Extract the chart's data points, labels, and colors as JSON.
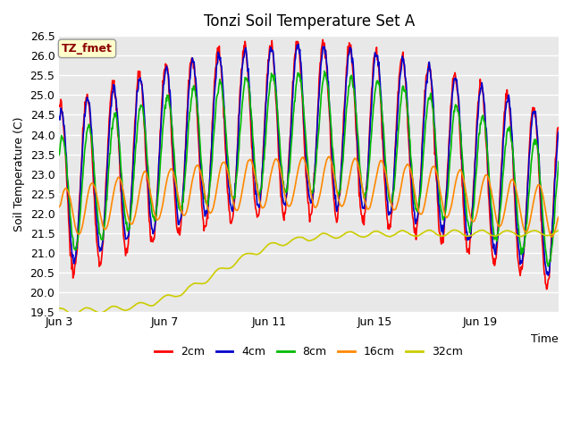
{
  "title": "Tonzi Soil Temperature Set A",
  "xlabel": "Time",
  "ylabel": "Soil Temperature (C)",
  "ylim": [
    19.5,
    26.5
  ],
  "series": {
    "2cm": {
      "color": "#ff0000",
      "linewidth": 1.2
    },
    "4cm": {
      "color": "#0000cc",
      "linewidth": 1.2
    },
    "8cm": {
      "color": "#00bb00",
      "linewidth": 1.2
    },
    "16cm": {
      "color": "#ff8800",
      "linewidth": 1.2
    },
    "32cm": {
      "color": "#cccc00",
      "linewidth": 1.2
    }
  },
  "annotation_text": "TZ_fmet",
  "annotation_color": "#8b0000",
  "annotation_bg": "#ffffcc",
  "annotation_border": "#999999",
  "plot_bg": "#e8e8e8",
  "fig_bg": "#ffffff",
  "grid_color": "#ffffff",
  "n_days": 19,
  "tick_positions": [
    0,
    4,
    8,
    12,
    16
  ],
  "tick_labels": [
    "Jun 3",
    "Jun 7",
    "Jun 11",
    "Jun 15",
    "Jun 19"
  ]
}
